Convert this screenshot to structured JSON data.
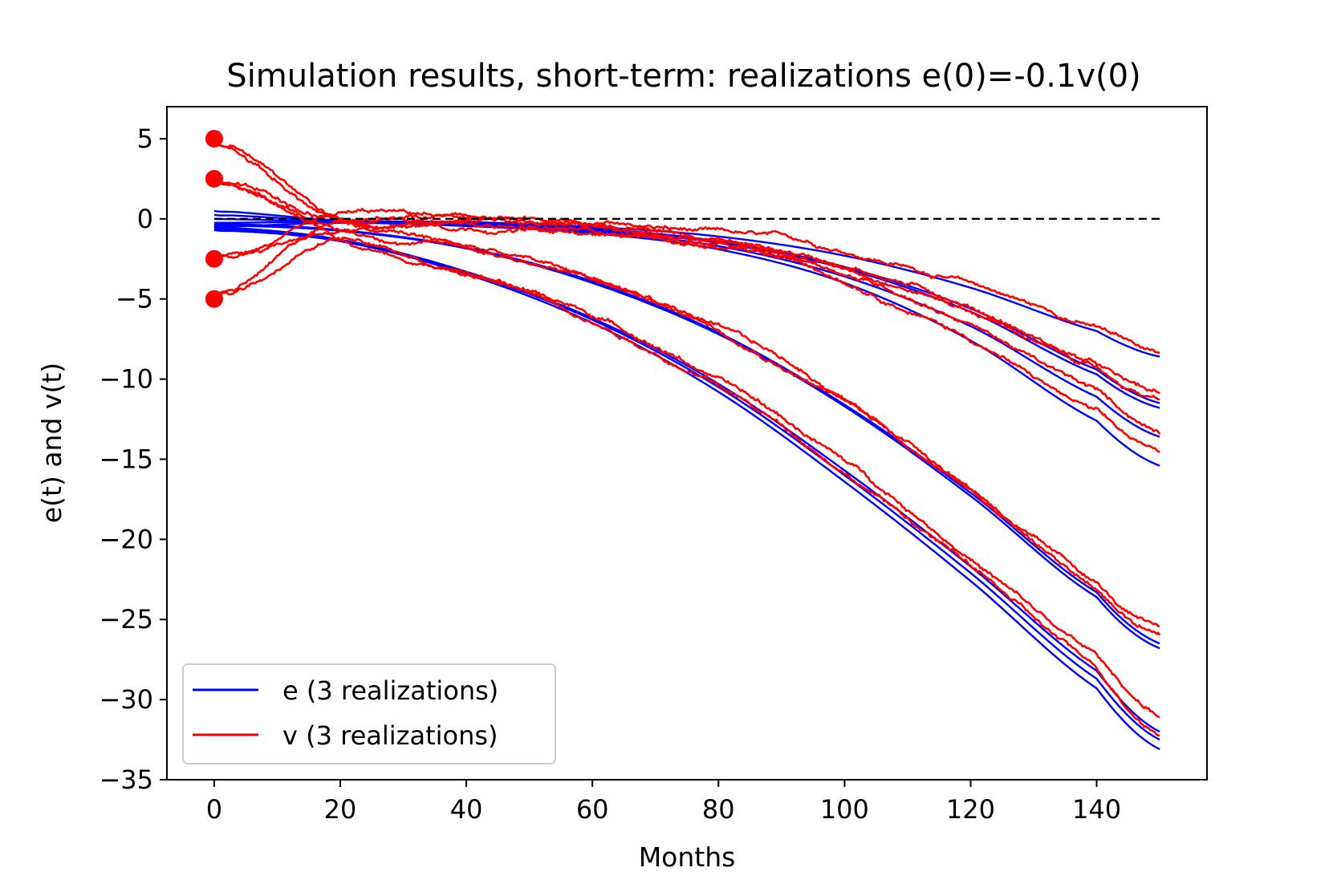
{
  "chart_data": {
    "type": "line",
    "title": "Simulation results, short-term: realizations e(0)=-0.1v(0)",
    "xlabel": "Months",
    "ylabel": "e(t) and v(t)",
    "xlim": [
      -7.5,
      157.5
    ],
    "ylim": [
      -35,
      7
    ],
    "xticks": [
      0,
      20,
      40,
      60,
      80,
      100,
      120,
      140
    ],
    "yticks": [
      5,
      0,
      -5,
      -10,
      -15,
      -20,
      -25,
      -30,
      -35
    ],
    "xtick_labels": [
      "0",
      "20",
      "40",
      "60",
      "80",
      "100",
      "120",
      "140"
    ],
    "ytick_labels": [
      "5",
      "0",
      "−5",
      "−10",
      "−15",
      "−20",
      "−25",
      "−30",
      "−35"
    ],
    "reference_line": {
      "y": 0,
      "style": "dashed",
      "color": "#000000",
      "x_range": [
        0,
        150
      ]
    },
    "legend": {
      "position": "lower-left",
      "entries": [
        {
          "label": "e (3 realizations)",
          "color": "#0000ff"
        },
        {
          "label": "v (3 realizations)",
          "color": "#ff0000"
        }
      ]
    },
    "initial_points": {
      "x": 0,
      "values": [
        5,
        2.5,
        -2.5,
        -5
      ],
      "color": "#ff0000"
    },
    "series_end_values": {
      "e": [
        -8.6,
        -11.5,
        -11.8,
        -13.6,
        -15.4,
        -26.5,
        -26.8,
        -32.0,
        -32.5,
        -33.1
      ],
      "v": [
        -8.3,
        -11.0,
        -11.3,
        -13.3,
        -14.8,
        -25.8,
        -26.1,
        -31.0,
        -32.0
      ]
    },
    "series": [
      {
        "name": "e",
        "group": "slow",
        "color": "#0000ff",
        "e0": 0.5,
        "x": [
          0,
          20,
          40,
          60,
          80,
          100,
          120,
          140,
          150
        ],
        "values": [
          0.5,
          -0.1,
          -0.2,
          -0.5,
          -1.1,
          -2.3,
          -4.3,
          -7.0,
          -8.6
        ]
      },
      {
        "name": "e",
        "group": "slow",
        "color": "#0000ff",
        "e0": 0.25,
        "x": [
          0,
          20,
          40,
          60,
          80,
          100,
          120,
          140,
          150
        ],
        "values": [
          0.25,
          -0.15,
          -0.3,
          -0.6,
          -1.4,
          -3.0,
          -5.6,
          -9.4,
          -11.5
        ]
      },
      {
        "name": "e",
        "group": "slow",
        "color": "#0000ff",
        "e0": 0.0,
        "x": [
          0,
          20,
          40,
          60,
          80,
          100,
          120,
          140,
          150
        ],
        "values": [
          0.0,
          -0.2,
          -0.3,
          -0.7,
          -1.5,
          -3.1,
          -5.8,
          -9.7,
          -11.8
        ]
      },
      {
        "name": "e",
        "group": "slow",
        "color": "#0000ff",
        "e0": -0.25,
        "x": [
          0,
          20,
          40,
          60,
          80,
          100,
          120,
          140,
          150
        ],
        "values": [
          -0.25,
          -0.2,
          -0.4,
          -0.8,
          -1.7,
          -3.6,
          -6.7,
          -11.1,
          -13.6
        ]
      },
      {
        "name": "e",
        "group": "slow",
        "color": "#0000ff",
        "e0": -0.5,
        "x": [
          0,
          20,
          40,
          60,
          80,
          100,
          120,
          140,
          150
        ],
        "values": [
          -0.5,
          -0.25,
          -0.45,
          -0.9,
          -1.9,
          -4.0,
          -7.6,
          -12.6,
          -15.4
        ]
      },
      {
        "name": "e",
        "group": "mid",
        "color": "#0000ff",
        "e0": -0.3,
        "x": [
          0,
          20,
          40,
          60,
          80,
          100,
          120,
          140,
          150
        ],
        "values": [
          -0.3,
          -0.7,
          -1.8,
          -3.9,
          -7.1,
          -11.6,
          -17.1,
          -23.3,
          -26.5
        ]
      },
      {
        "name": "e",
        "group": "mid",
        "color": "#0000ff",
        "e0": -0.4,
        "x": [
          0,
          20,
          40,
          60,
          80,
          100,
          120,
          140,
          150
        ],
        "values": [
          -0.4,
          -0.75,
          -1.85,
          -4.0,
          -7.2,
          -11.7,
          -17.3,
          -23.6,
          -26.8
        ]
      },
      {
        "name": "e",
        "group": "fast",
        "color": "#0000ff",
        "e0": -0.5,
        "x": [
          0,
          20,
          40,
          60,
          80,
          100,
          120,
          140,
          150
        ],
        "values": [
          -0.5,
          -1.3,
          -3.3,
          -6.2,
          -10.3,
          -15.7,
          -21.7,
          -28.2,
          -32.0
        ]
      },
      {
        "name": "e",
        "group": "fast",
        "color": "#0000ff",
        "e0": -0.6,
        "x": [
          0,
          20,
          40,
          60,
          80,
          100,
          120,
          140,
          150
        ],
        "values": [
          -0.6,
          -1.35,
          -3.35,
          -6.3,
          -10.5,
          -16.0,
          -22.1,
          -28.7,
          -32.5
        ]
      },
      {
        "name": "e",
        "group": "fast",
        "color": "#0000ff",
        "e0": -0.7,
        "x": [
          0,
          20,
          40,
          60,
          80,
          100,
          120,
          140,
          150
        ],
        "values": [
          -0.7,
          -1.4,
          -3.45,
          -6.5,
          -10.8,
          -16.4,
          -22.6,
          -29.3,
          -33.1
        ]
      },
      {
        "name": "v",
        "group": "slow",
        "color": "#ff0000",
        "v0": 5.0,
        "x": [
          0,
          20,
          40,
          60,
          80,
          100,
          120,
          140,
          150
        ],
        "values": [
          5.0,
          0.0,
          -0.1,
          -0.3,
          -1.0,
          -2.1,
          -4.0,
          -6.7,
          -8.3
        ]
      },
      {
        "name": "v",
        "group": "slow",
        "color": "#ff0000",
        "v0": 2.5,
        "x": [
          0,
          20,
          40,
          60,
          80,
          100,
          120,
          140,
          150
        ],
        "values": [
          2.5,
          -0.1,
          -0.2,
          -0.5,
          -1.3,
          -2.8,
          -5.3,
          -9.0,
          -11.0
        ]
      },
      {
        "name": "v",
        "group": "slow",
        "color": "#ff0000",
        "v0": -2.5,
        "x": [
          0,
          20,
          40,
          60,
          80,
          100,
          120,
          140,
          150
        ],
        "values": [
          -2.5,
          -0.1,
          -0.2,
          -0.6,
          -1.4,
          -2.9,
          -5.5,
          -9.3,
          -11.3
        ]
      },
      {
        "name": "v",
        "group": "slow",
        "color": "#ff0000",
        "v0": -5.0,
        "x": [
          0,
          20,
          40,
          60,
          80,
          100,
          120,
          140,
          150
        ],
        "values": [
          -5.0,
          -0.15,
          -0.3,
          -0.7,
          -1.6,
          -3.4,
          -6.4,
          -10.8,
          -13.3
        ]
      },
      {
        "name": "v",
        "group": "slow",
        "color": "#ff0000",
        "v0": 5.0,
        "x": [
          0,
          20,
          40,
          60,
          80,
          100,
          120,
          140,
          150
        ],
        "values": [
          5.0,
          -0.2,
          -0.35,
          -0.8,
          -1.8,
          -3.8,
          -7.3,
          -12.1,
          -14.8
        ]
      },
      {
        "name": "v",
        "group": "mid",
        "color": "#ff0000",
        "v0": 2.5,
        "x": [
          0,
          20,
          40,
          60,
          80,
          100,
          120,
          140,
          150
        ],
        "values": [
          2.5,
          -0.6,
          -1.7,
          -3.7,
          -6.8,
          -11.2,
          -16.6,
          -22.7,
          -25.8
        ]
      },
      {
        "name": "v",
        "group": "mid",
        "color": "#ff0000",
        "v0": -2.5,
        "x": [
          0,
          20,
          40,
          60,
          80,
          100,
          120,
          140,
          150
        ],
        "values": [
          -2.5,
          -0.65,
          -1.75,
          -3.8,
          -6.9,
          -11.3,
          -16.8,
          -23.0,
          -26.1
        ]
      },
      {
        "name": "v",
        "group": "fast",
        "color": "#ff0000",
        "v0": -5.0,
        "x": [
          0,
          20,
          40,
          60,
          80,
          100,
          120,
          140,
          150
        ],
        "values": [
          -5.0,
          -1.2,
          -3.1,
          -5.9,
          -9.9,
          -15.1,
          -21.0,
          -27.3,
          -31.0
        ]
      },
      {
        "name": "v",
        "group": "fast",
        "color": "#ff0000",
        "v0": 2.5,
        "x": [
          0,
          20,
          40,
          60,
          80,
          100,
          120,
          140,
          150
        ],
        "values": [
          2.5,
          -1.3,
          -3.25,
          -6.2,
          -10.3,
          -15.6,
          -21.6,
          -28.1,
          -32.0
        ]
      }
    ]
  }
}
